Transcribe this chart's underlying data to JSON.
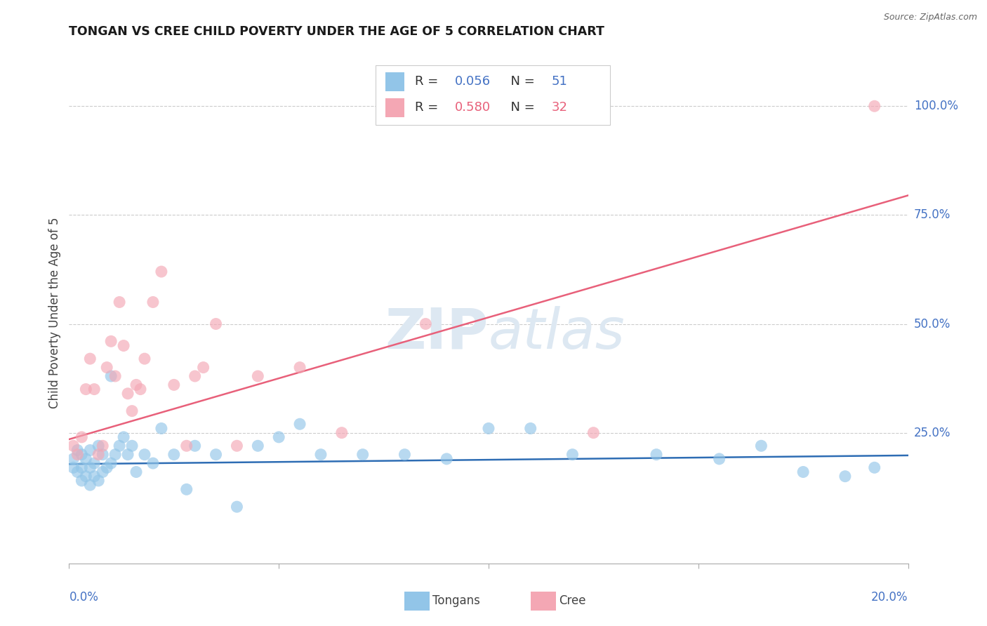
{
  "title": "TONGAN VS CREE CHILD POVERTY UNDER THE AGE OF 5 CORRELATION CHART",
  "source": "Source: ZipAtlas.com",
  "ylabel": "Child Poverty Under the Age of 5",
  "ytick_vals": [
    0.0,
    0.25,
    0.5,
    0.75,
    1.0
  ],
  "ytick_labels": [
    "",
    "25.0%",
    "50.0%",
    "75.0%",
    "100.0%"
  ],
  "xlim": [
    0.0,
    0.2
  ],
  "ylim": [
    -0.05,
    1.1
  ],
  "tongan_R": "0.056",
  "tongan_N": "51",
  "cree_R": "0.580",
  "cree_N": "32",
  "tongan_color": "#92C5E8",
  "cree_color": "#F4A7B4",
  "tongan_line_color": "#2E6DB4",
  "cree_line_color": "#E8607A",
  "background_color": "#FFFFFF",
  "grid_color": "#CCCCCC",
  "watermark_color": "#DDE8F2",
  "axis_label_color": "#4472C4",
  "title_color": "#1A1A1A",
  "ylabel_color": "#444444",
  "tongan_x": [
    0.001,
    0.001,
    0.002,
    0.002,
    0.003,
    0.003,
    0.003,
    0.004,
    0.004,
    0.005,
    0.005,
    0.005,
    0.006,
    0.006,
    0.007,
    0.007,
    0.008,
    0.008,
    0.009,
    0.01,
    0.01,
    0.011,
    0.012,
    0.013,
    0.014,
    0.015,
    0.016,
    0.018,
    0.02,
    0.022,
    0.025,
    0.028,
    0.03,
    0.035,
    0.04,
    0.045,
    0.05,
    0.055,
    0.06,
    0.07,
    0.08,
    0.09,
    0.1,
    0.11,
    0.12,
    0.14,
    0.155,
    0.165,
    0.175,
    0.185,
    0.192
  ],
  "tongan_y": [
    0.17,
    0.19,
    0.16,
    0.21,
    0.14,
    0.17,
    0.2,
    0.15,
    0.19,
    0.13,
    0.17,
    0.21,
    0.15,
    0.18,
    0.14,
    0.22,
    0.16,
    0.2,
    0.17,
    0.18,
    0.38,
    0.2,
    0.22,
    0.24,
    0.2,
    0.22,
    0.16,
    0.2,
    0.18,
    0.26,
    0.2,
    0.12,
    0.22,
    0.2,
    0.08,
    0.22,
    0.24,
    0.27,
    0.2,
    0.2,
    0.2,
    0.19,
    0.26,
    0.26,
    0.2,
    0.2,
    0.19,
    0.22,
    0.16,
    0.15,
    0.17
  ],
  "cree_x": [
    0.001,
    0.002,
    0.003,
    0.004,
    0.005,
    0.006,
    0.007,
    0.008,
    0.009,
    0.01,
    0.011,
    0.012,
    0.013,
    0.014,
    0.015,
    0.016,
    0.017,
    0.018,
    0.02,
    0.022,
    0.025,
    0.028,
    0.03,
    0.032,
    0.035,
    0.04,
    0.045,
    0.055,
    0.065,
    0.085,
    0.125,
    0.192
  ],
  "cree_y": [
    0.22,
    0.2,
    0.24,
    0.35,
    0.42,
    0.35,
    0.2,
    0.22,
    0.4,
    0.46,
    0.38,
    0.55,
    0.45,
    0.34,
    0.3,
    0.36,
    0.35,
    0.42,
    0.55,
    0.62,
    0.36,
    0.22,
    0.38,
    0.4,
    0.5,
    0.22,
    0.38,
    0.4,
    0.25,
    0.5,
    0.25,
    1.0
  ],
  "tongan_trend_x": [
    0.0,
    0.2
  ],
  "tongan_trend_y": [
    0.178,
    0.198
  ],
  "cree_trend_x": [
    0.0,
    0.2
  ],
  "cree_trend_y": [
    0.235,
    0.795
  ]
}
